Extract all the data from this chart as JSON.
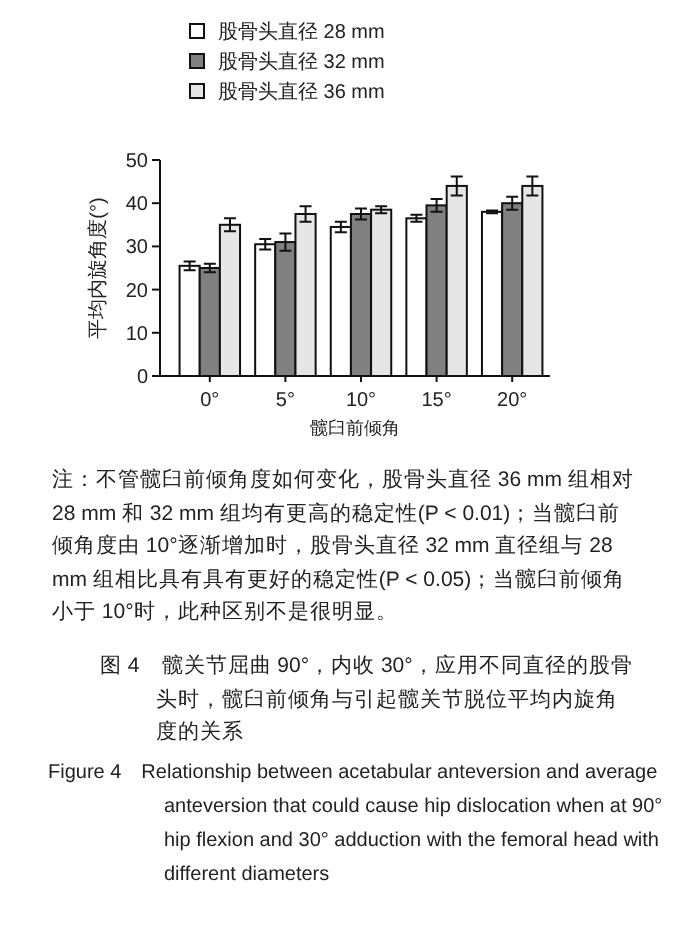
{
  "chart_data": {
    "type": "bar",
    "xlabel": "髋臼前倾角",
    "ylabel": "平均内旋角度(°)",
    "categories": [
      "0°",
      "5°",
      "10°",
      "15°",
      "20°"
    ],
    "series": [
      {
        "name": "股骨头直径 28 mm",
        "color": "#ffffff",
        "values": [
          25.5,
          30.5,
          34.5,
          36.5,
          38
        ],
        "errors": [
          1,
          1.2,
          1.2,
          0.8,
          0.3
        ]
      },
      {
        "name": "股骨头直径 32 mm",
        "color": "#808080",
        "values": [
          25,
          31,
          37.5,
          39.5,
          40
        ],
        "errors": [
          1,
          2,
          1.3,
          1.5,
          1.5
        ]
      },
      {
        "name": "股骨头直径 36 mm",
        "color": "#e6e6e6",
        "values": [
          35,
          37.5,
          38.5,
          44,
          44
        ],
        "errors": [
          1.5,
          1.8,
          0.8,
          2.2,
          2.2
        ]
      }
    ],
    "ylim": [
      0,
      50
    ],
    "yticks": [
      0,
      10,
      20,
      30,
      40,
      50
    ],
    "grid": false,
    "legend": "top",
    "annotations": [
      "注：不管髋臼前倾角度如何变化，股骨头直径 36 mm 组相对 28 mm 和 32 mm 组均有更高的稳定性(P < 0.01)；当髋臼前倾角度由 10°逐渐增加时，股骨头直径 32 mm 直径组与 28 mm 组相比具有具有更好的稳定性(P < 0.05)；当髋臼前倾角小于 10°时，此种区别不是很明显。",
      "图 4　髋关节屈曲 90°，内收 30°，应用不同直径的股骨头时，髋臼前倾角与引起髋关节脱位平均内旋角度的关系",
      "Figure 4　Relationship between acetabular anteversion and average anteversion that could cause hip dislocation when at 90° hip flexion and 30° adduction with the femoral head with different diameters"
    ]
  }
}
